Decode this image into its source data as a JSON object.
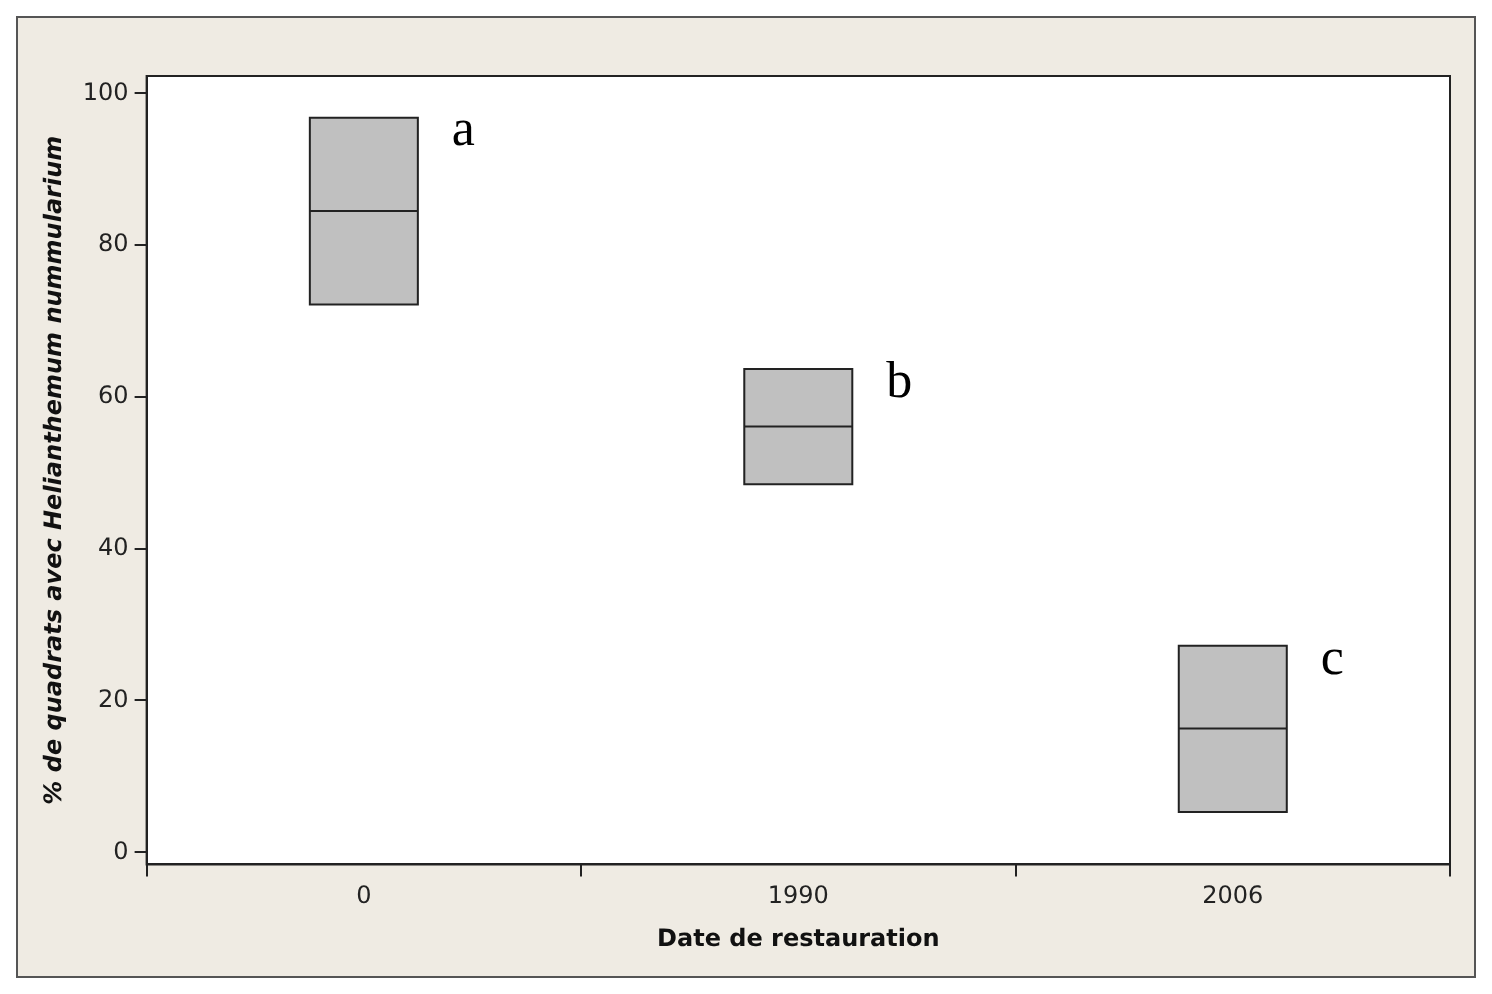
{
  "chart_data": {
    "type": "box",
    "xlabel": "Date de restauration",
    "ylabel": "% de quadrats avec Helianthemum nummularium",
    "categories": [
      "0",
      "1990",
      "2006"
    ],
    "boxes": [
      {
        "low": 72.2,
        "q1": 72.2,
        "median": 84.5,
        "q3": 96.8,
        "high": 96.8
      },
      {
        "low": 48.5,
        "q1": 48.5,
        "median": 56.1,
        "q3": 63.7,
        "high": 63.7
      },
      {
        "low": 5.3,
        "q1": 5.3,
        "median": 16.3,
        "q3": 27.2,
        "high": 27.2
      }
    ],
    "color": "#c0c0c0",
    "ylim": [
      -1.6,
      102.3
    ],
    "yticks": [
      0,
      20,
      40,
      60,
      80,
      100
    ],
    "grid": false,
    "legend": false,
    "annotations": [
      {
        "text": "a",
        "x": "0",
        "y": 96.8
      },
      {
        "text": "b",
        "x": "1990",
        "y": 63.7
      },
      {
        "text": "c",
        "x": "2006",
        "y": 27.2
      }
    ]
  }
}
